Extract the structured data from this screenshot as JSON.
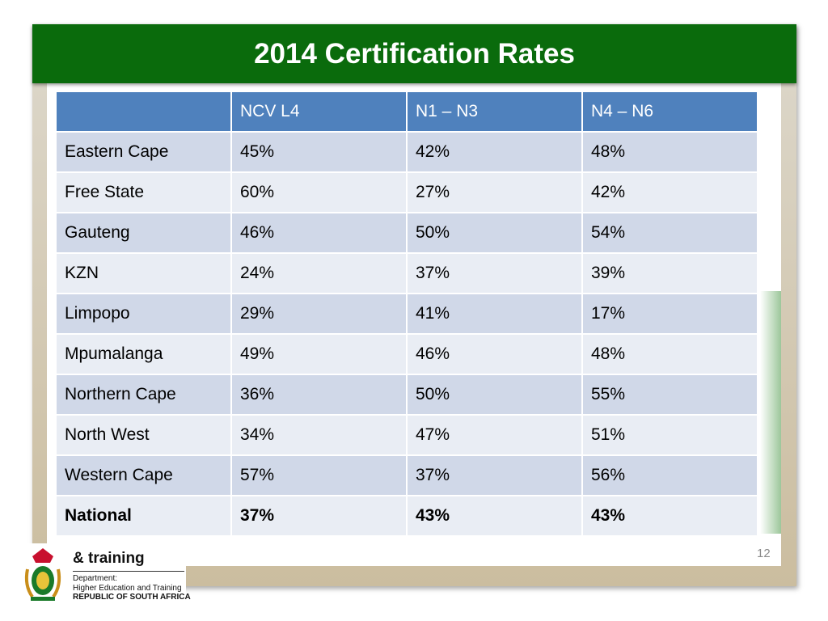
{
  "title": "2014 Certification Rates",
  "table": {
    "header": [
      "NCV L4",
      "N1 – N3",
      "N4 – N6"
    ],
    "rows": [
      [
        "Eastern Cape",
        "45%",
        "42%",
        "48%"
      ],
      [
        "Free State",
        "60%",
        "27%",
        "42%"
      ],
      [
        "Gauteng",
        "46%",
        "50%",
        "54%"
      ],
      [
        "KZN",
        "24%",
        "37%",
        "39%"
      ],
      [
        "Limpopo",
        "29%",
        "41%",
        "17%"
      ],
      [
        "Mpumalanga",
        "49%",
        "46%",
        "48%"
      ],
      [
        "Northern Cape",
        "36%",
        "50%",
        "55%"
      ],
      [
        "North West",
        "34%",
        "47%",
        "51%"
      ],
      [
        "Western Cape",
        "57%",
        "37%",
        "56%"
      ],
      [
        "National",
        "37%",
        "43%",
        "43%"
      ]
    ]
  },
  "page_number": "12",
  "logo": {
    "name": "& training",
    "department": "Department:",
    "ministry": "Higher Education and Training",
    "country": "REPUBLIC OF SOUTH AFRICA"
  }
}
